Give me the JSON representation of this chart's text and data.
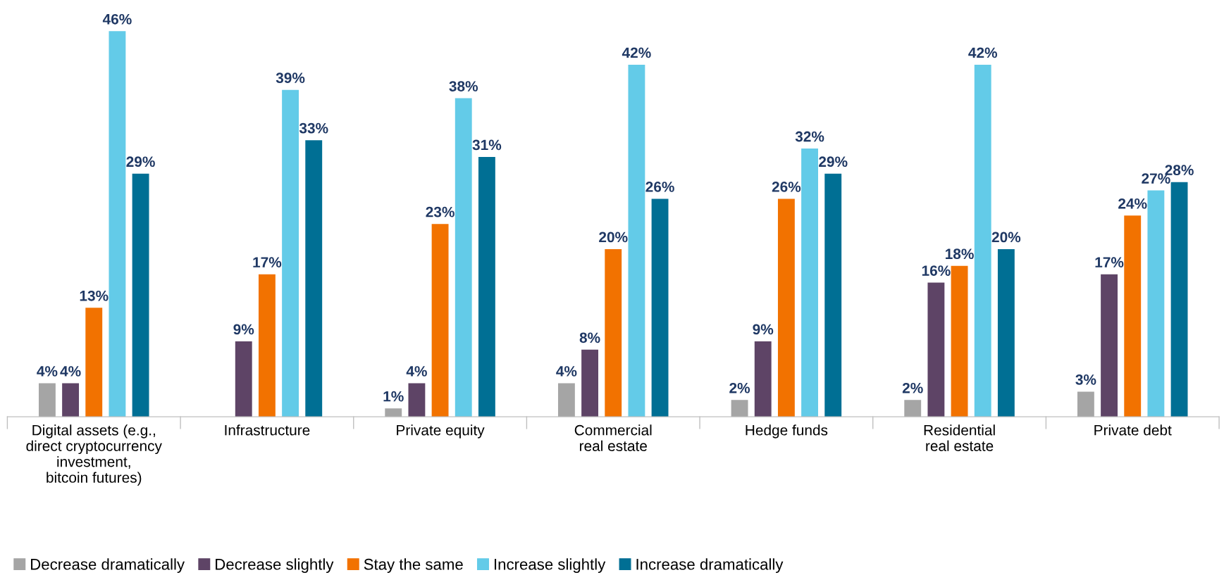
{
  "chart_data": {
    "type": "bar",
    "categories": [
      "Digital assets (e.g.,\ndirect cryptocurrency\ninvestment,\nbitcoin futures)",
      "Infrastructure",
      "Private equity",
      "Commercial\nreal estate",
      "Hedge funds",
      "Residential\nreal estate",
      "Private debt"
    ],
    "series": [
      {
        "name": "Decrease dramatically",
        "color": "#a5a5a5",
        "values": [
          4,
          null,
          1,
          4,
          2,
          2,
          3
        ],
        "value_labels": [
          "4%",
          null,
          "1%",
          "4%",
          "2%",
          "2%",
          "3%"
        ]
      },
      {
        "name": "Decrease slightly",
        "color": "#5e4466",
        "values": [
          4,
          9,
          4,
          8,
          9,
          16,
          17
        ],
        "value_labels": [
          "4%",
          "9%",
          "4%",
          "8%",
          "9%",
          "16%",
          "17%"
        ]
      },
      {
        "name": "Stay the same",
        "color": "#f27200",
        "values": [
          13,
          17,
          23,
          20,
          26,
          18,
          24
        ],
        "value_labels": [
          "13%",
          "17%",
          "23%",
          "20%",
          "26%",
          "18%",
          "24%"
        ]
      },
      {
        "name": "Increase slightly",
        "color": "#63cbe8",
        "values": [
          46,
          39,
          38,
          42,
          32,
          42,
          27
        ],
        "value_labels": [
          "46%",
          "39%",
          "38%",
          "42%",
          "32%",
          "42%",
          "27%"
        ]
      },
      {
        "name": "Increase dramatically",
        "color": "#006f94",
        "values": [
          29,
          33,
          31,
          26,
          29,
          20,
          28
        ],
        "value_labels": [
          "29%",
          "33%",
          "31%",
          "26%",
          "29%",
          "20%",
          "28%"
        ]
      }
    ],
    "legend": "bottom left",
    "grid": false
  }
}
